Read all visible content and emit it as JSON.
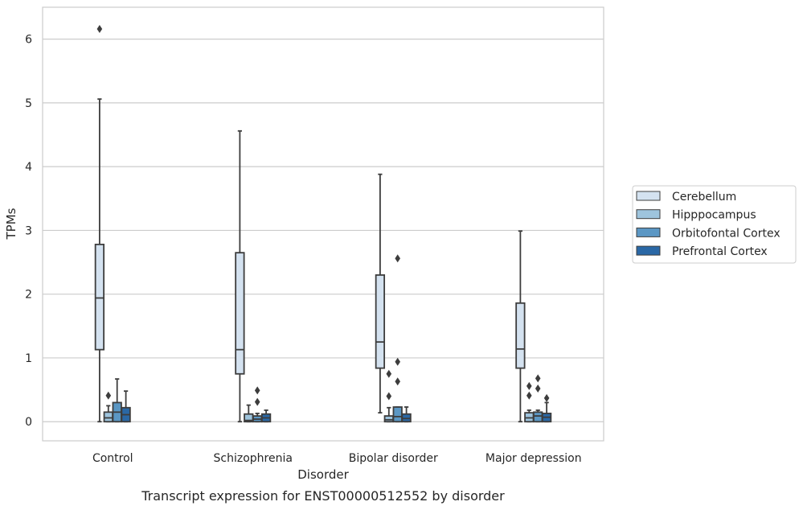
{
  "chart_data": {
    "type": "box",
    "title": "Transcript expression for ENST00000512552 by disorder",
    "xlabel": "Disorder",
    "ylabel": "TPMs",
    "ylim": [
      -0.3,
      6.5
    ],
    "yticks": [
      0,
      1,
      2,
      3,
      4,
      5,
      6
    ],
    "grid": "horizontal",
    "legend_position": "right",
    "categories": [
      "Control",
      "Schizophrenia",
      "Bipolar disorder",
      "Major depression"
    ],
    "series": [
      {
        "name": "Cerebellum",
        "color": "#d4e2f0",
        "boxes": [
          {
            "whislo": 0.0,
            "q1": 1.13,
            "med": 1.94,
            "q3": 2.78,
            "whishi": 5.06,
            "fliers": [
              6.16
            ]
          },
          {
            "whislo": 0.0,
            "q1": 0.75,
            "med": 1.13,
            "q3": 2.65,
            "whishi": 4.56,
            "fliers": []
          },
          {
            "whislo": 0.14,
            "q1": 0.84,
            "med": 1.25,
            "q3": 2.3,
            "whishi": 3.88,
            "fliers": []
          },
          {
            "whislo": 0.0,
            "q1": 0.84,
            "med": 1.14,
            "q3": 1.86,
            "whishi": 2.99,
            "fliers": []
          }
        ]
      },
      {
        "name": "Hipppocampus",
        "color": "#9ec4dd",
        "boxes": [
          {
            "whislo": 0.0,
            "q1": 0.0,
            "med": 0.06,
            "q3": 0.15,
            "whishi": 0.25,
            "fliers": [
              0.41
            ]
          },
          {
            "whislo": 0.0,
            "q1": 0.0,
            "med": 0.02,
            "q3": 0.12,
            "whishi": 0.26,
            "fliers": []
          },
          {
            "whislo": 0.0,
            "q1": 0.0,
            "med": 0.03,
            "q3": 0.09,
            "whishi": 0.22,
            "fliers": [
              0.4,
              0.75
            ]
          },
          {
            "whislo": 0.0,
            "q1": 0.0,
            "med": 0.06,
            "q3": 0.14,
            "whishi": 0.18,
            "fliers": [
              0.41,
              0.56
            ]
          }
        ]
      },
      {
        "name": "Orbitofontal Cortex",
        "color": "#5b97c4",
        "boxes": [
          {
            "whislo": 0.0,
            "q1": 0.0,
            "med": 0.15,
            "q3": 0.3,
            "whishi": 0.67,
            "fliers": []
          },
          {
            "whislo": 0.0,
            "q1": 0.0,
            "med": 0.04,
            "q3": 0.09,
            "whishi": 0.13,
            "fliers": [
              0.31,
              0.49
            ]
          },
          {
            "whislo": 0.0,
            "q1": 0.0,
            "med": 0.08,
            "q3": 0.23,
            "whishi": 0.23,
            "fliers": [
              0.63,
              0.94,
              2.56
            ]
          },
          {
            "whislo": 0.0,
            "q1": 0.0,
            "med": 0.09,
            "q3": 0.15,
            "whishi": 0.18,
            "fliers": [
              0.52,
              0.68
            ]
          }
        ]
      },
      {
        "name": "Prefrontal Cortex",
        "color": "#2a68a6",
        "boxes": [
          {
            "whislo": 0.0,
            "q1": 0.0,
            "med": 0.11,
            "q3": 0.22,
            "whishi": 0.48,
            "fliers": []
          },
          {
            "whislo": 0.0,
            "q1": 0.0,
            "med": 0.06,
            "q3": 0.12,
            "whishi": 0.18,
            "fliers": []
          },
          {
            "whislo": 0.0,
            "q1": 0.0,
            "med": 0.05,
            "q3": 0.12,
            "whishi": 0.23,
            "fliers": []
          },
          {
            "whislo": 0.0,
            "q1": 0.0,
            "med": 0.07,
            "q3": 0.13,
            "whishi": 0.3,
            "fliers": [
              0.37
            ]
          }
        ]
      }
    ]
  }
}
